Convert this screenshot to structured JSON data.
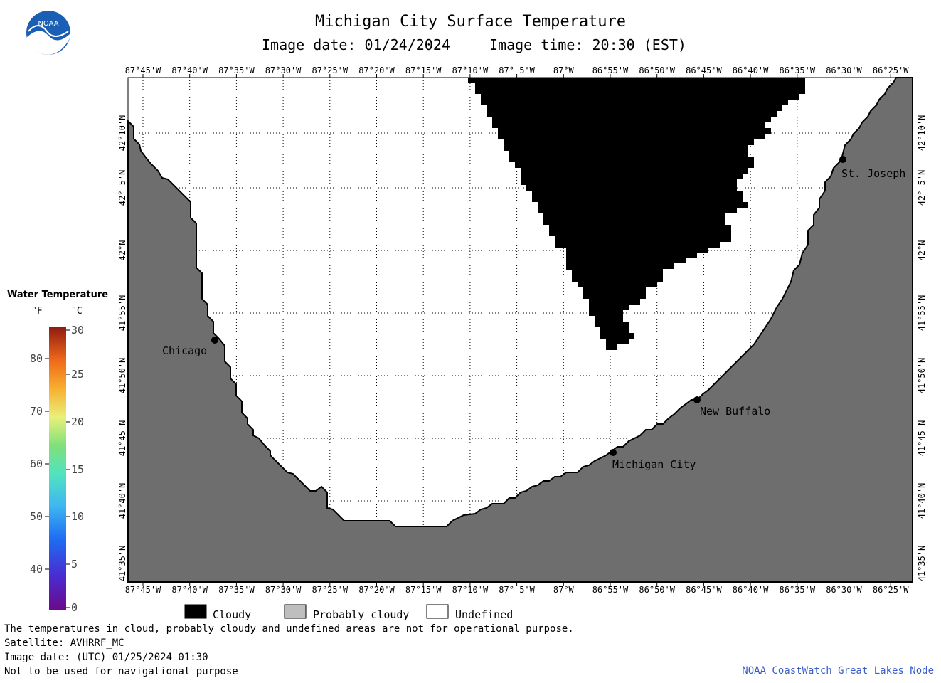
{
  "title": "Michigan City Surface Temperature",
  "image_date": "Image date: 01/24/2024",
  "image_time": "Image time: 20:30 (EST)",
  "logo_text": "NOAA",
  "lon_labels": [
    "87°45'W",
    "87°40'W",
    "87°35'W",
    "87°30'W",
    "87°25'W",
    "87°20'W",
    "87°15'W",
    "87°10'W",
    "87° 5'W",
    "87°W",
    "86°55'W",
    "86°50'W",
    "86°45'W",
    "86°40'W",
    "86°35'W",
    "86°30'W",
    "86°25'W"
  ],
  "lat_labels": [
    "42°10'N",
    "42° 5'N",
    "42°N",
    "41°55'N",
    "41°50'N",
    "41°45'N",
    "41°40'N",
    "41°35'N"
  ],
  "cities": [
    {
      "name": "Chicago"
    },
    {
      "name": "Michigan City"
    },
    {
      "name": "New Buffalo"
    },
    {
      "name": "St. Joseph"
    }
  ],
  "colorbar": {
    "title": "Water Temperature",
    "unit_f": "°F",
    "unit_c": "°C",
    "f_ticks": [
      "80",
      "70",
      "60",
      "50",
      "40"
    ],
    "c_ticks": [
      "30",
      "25",
      "20",
      "15",
      "10",
      "5",
      "0"
    ]
  },
  "legend": [
    {
      "label": "Cloudy",
      "color": "#000000"
    },
    {
      "label": "Probably cloudy",
      "color": "#bebebe"
    },
    {
      "label": "Undefined",
      "color": "#ffffff"
    }
  ],
  "footer": {
    "disclaimer": "The temperatures in cloud, probably cloudy and undefined areas are not for operational purpose.",
    "satellite": "Satellite: AVHRRF_MC",
    "utc_date": "Image date: (UTC) 01/25/2024  01:30",
    "nav_warning": "Not to be used for navigational purpose",
    "credit": "NOAA CoastWatch Great Lakes Node"
  },
  "colors": {
    "land": "#6e6e6e",
    "cloud": "#000000",
    "water_undefined": "#ffffff",
    "credit": "#3a5fcd"
  }
}
